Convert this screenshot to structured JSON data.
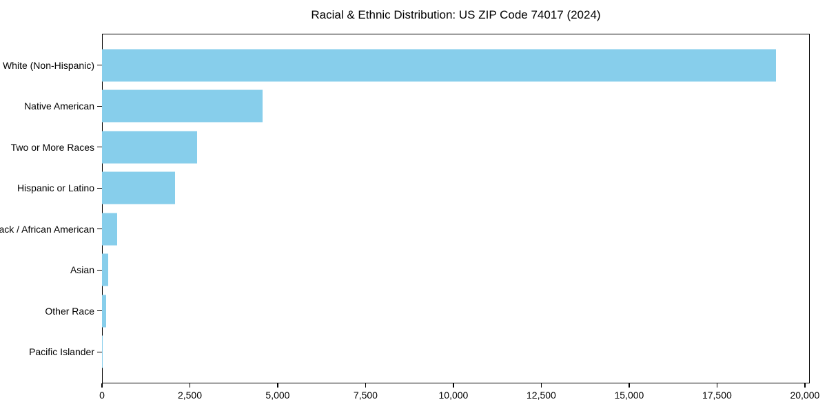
{
  "chart_data": {
    "type": "bar",
    "orientation": "horizontal",
    "title": "Racial & Ethnic Distribution: US ZIP Code 74017 (2024)",
    "categories": [
      "White (Non-Hispanic)",
      "Native American",
      "Two or More Races",
      "Hispanic or Latino",
      "Black / African American",
      "Asian",
      "Other Race",
      "Pacific Islander"
    ],
    "values": [
      19180,
      4560,
      2715,
      2070,
      440,
      185,
      115,
      15
    ],
    "xlabel": "",
    "ylabel": "",
    "x_ticks": [
      0,
      2500,
      5000,
      7500,
      10000,
      12500,
      15000,
      17500,
      20000
    ],
    "x_tick_labels": [
      "0",
      "2,500",
      "5,000",
      "7,500",
      "10,000",
      "12,500",
      "15,000",
      "17,500",
      "20,000"
    ],
    "xlim": [
      0,
      20140
    ],
    "bar_color": "#87CEEB",
    "axis_color": "#000000",
    "background_color": "#ffffff",
    "grid": false,
    "legend": null
  }
}
